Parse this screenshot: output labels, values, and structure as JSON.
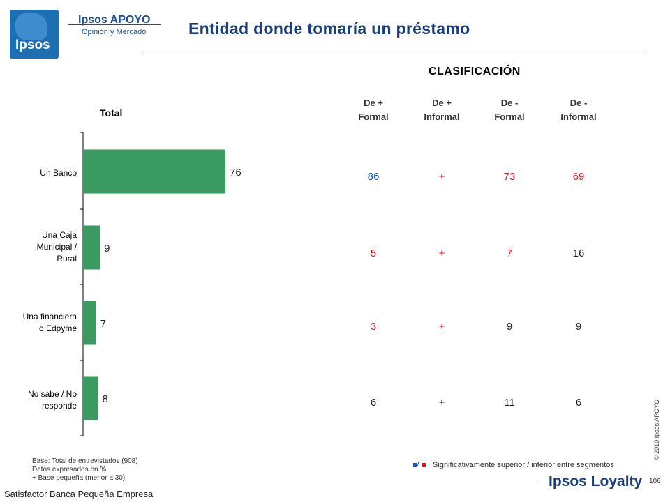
{
  "brand": {
    "logo_text": "Ipsos",
    "name": "Ipsos APOYO",
    "subtitle": "Opinión y Mercado"
  },
  "title": "Entidad donde tomaría un préstamo",
  "clasificacion_label": "CLASIFICACIÓN",
  "total_label": "Total",
  "columns": [
    {
      "line1": "De +",
      "line2": "Formal"
    },
    {
      "line1": "De +",
      "line2": "Informal"
    },
    {
      "line1": "De -",
      "line2": "Formal"
    },
    {
      "line1": "De  -",
      "line2": "Informal"
    }
  ],
  "chart_data": {
    "type": "bar",
    "orientation": "horizontal",
    "categories": [
      [
        "Un Banco"
      ],
      [
        "Una Caja",
        "Municipal /",
        "Rural"
      ],
      [
        "Una financiera",
        "o Edpyme"
      ],
      [
        "No sabe / No",
        "responde"
      ]
    ],
    "values": [
      76,
      9,
      7,
      8
    ],
    "xlim": [
      0,
      100
    ],
    "bar_color": "#3a9a62"
  },
  "table": {
    "rows": [
      [
        {
          "v": "86",
          "c": "blue"
        },
        {
          "v": "+",
          "c": "red"
        },
        {
          "v": "73",
          "c": "red"
        },
        {
          "v": "69",
          "c": "red"
        }
      ],
      [
        {
          "v": "5",
          "c": "red"
        },
        {
          "v": "+",
          "c": "red"
        },
        {
          "v": "7",
          "c": "red"
        },
        {
          "v": "16",
          "c": "black"
        }
      ],
      [
        {
          "v": "3",
          "c": "red"
        },
        {
          "v": "+",
          "c": "red"
        },
        {
          "v": "9",
          "c": "black"
        },
        {
          "v": "9",
          "c": "black"
        }
      ],
      [
        {
          "v": "6",
          "c": "black"
        },
        {
          "v": "+",
          "c": "black"
        },
        {
          "v": "11",
          "c": "black"
        },
        {
          "v": "6",
          "c": "black"
        }
      ]
    ]
  },
  "colors": {
    "red": "#e0121a",
    "blue": "#1a56c4"
  },
  "notes": {
    "base": "Base: Total de entrevistados (908)",
    "datos": "Datos expresados en %",
    "small_base": "+ Base pequeña (menor a 30)"
  },
  "legend": {
    "separator": "/",
    "text": "Significativamente superior / inferior entre segmentos"
  },
  "copyright": "© 2010 Ipsos APOYO",
  "page_number": "106",
  "footer": "Satisfactor Banca Pequeña Empresa",
  "footer_brand": "Ipsos Loyalty"
}
